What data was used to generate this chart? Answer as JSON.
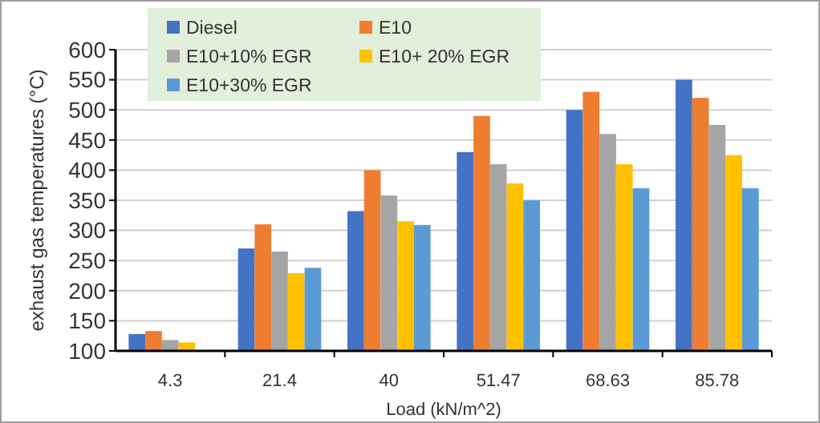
{
  "chart_data": {
    "type": "bar",
    "xlabel": "Load (kN/m^2)",
    "ylabel": "exhaust gas temperatures (°C)",
    "categories": [
      "4.3",
      "21.4",
      "40",
      "51.47",
      "68.63",
      "85.78"
    ],
    "series": [
      {
        "name": "Diesel",
        "color": "#4472c4",
        "values": [
          128,
          270,
          332,
          430,
          500,
          550
        ]
      },
      {
        "name": "E10",
        "color": "#ed7d31",
        "values": [
          133,
          310,
          400,
          490,
          530,
          520
        ]
      },
      {
        "name": "E10+10% EGR",
        "color": "#a5a5a5",
        "values": [
          118,
          265,
          358,
          410,
          460,
          475
        ]
      },
      {
        "name": "E10+ 20% EGR",
        "color": "#ffc000",
        "values": [
          114,
          229,
          315,
          378,
          410,
          425
        ]
      },
      {
        "name": "E10+30% EGR",
        "color": "#5b9bd5",
        "values": [
          null,
          238,
          309,
          350,
          370,
          370
        ]
      }
    ],
    "ylim": [
      100,
      600
    ],
    "yticks": [
      100,
      150,
      200,
      250,
      300,
      350,
      400,
      450,
      500,
      550,
      600
    ],
    "grid": "y",
    "legend": "top left"
  }
}
